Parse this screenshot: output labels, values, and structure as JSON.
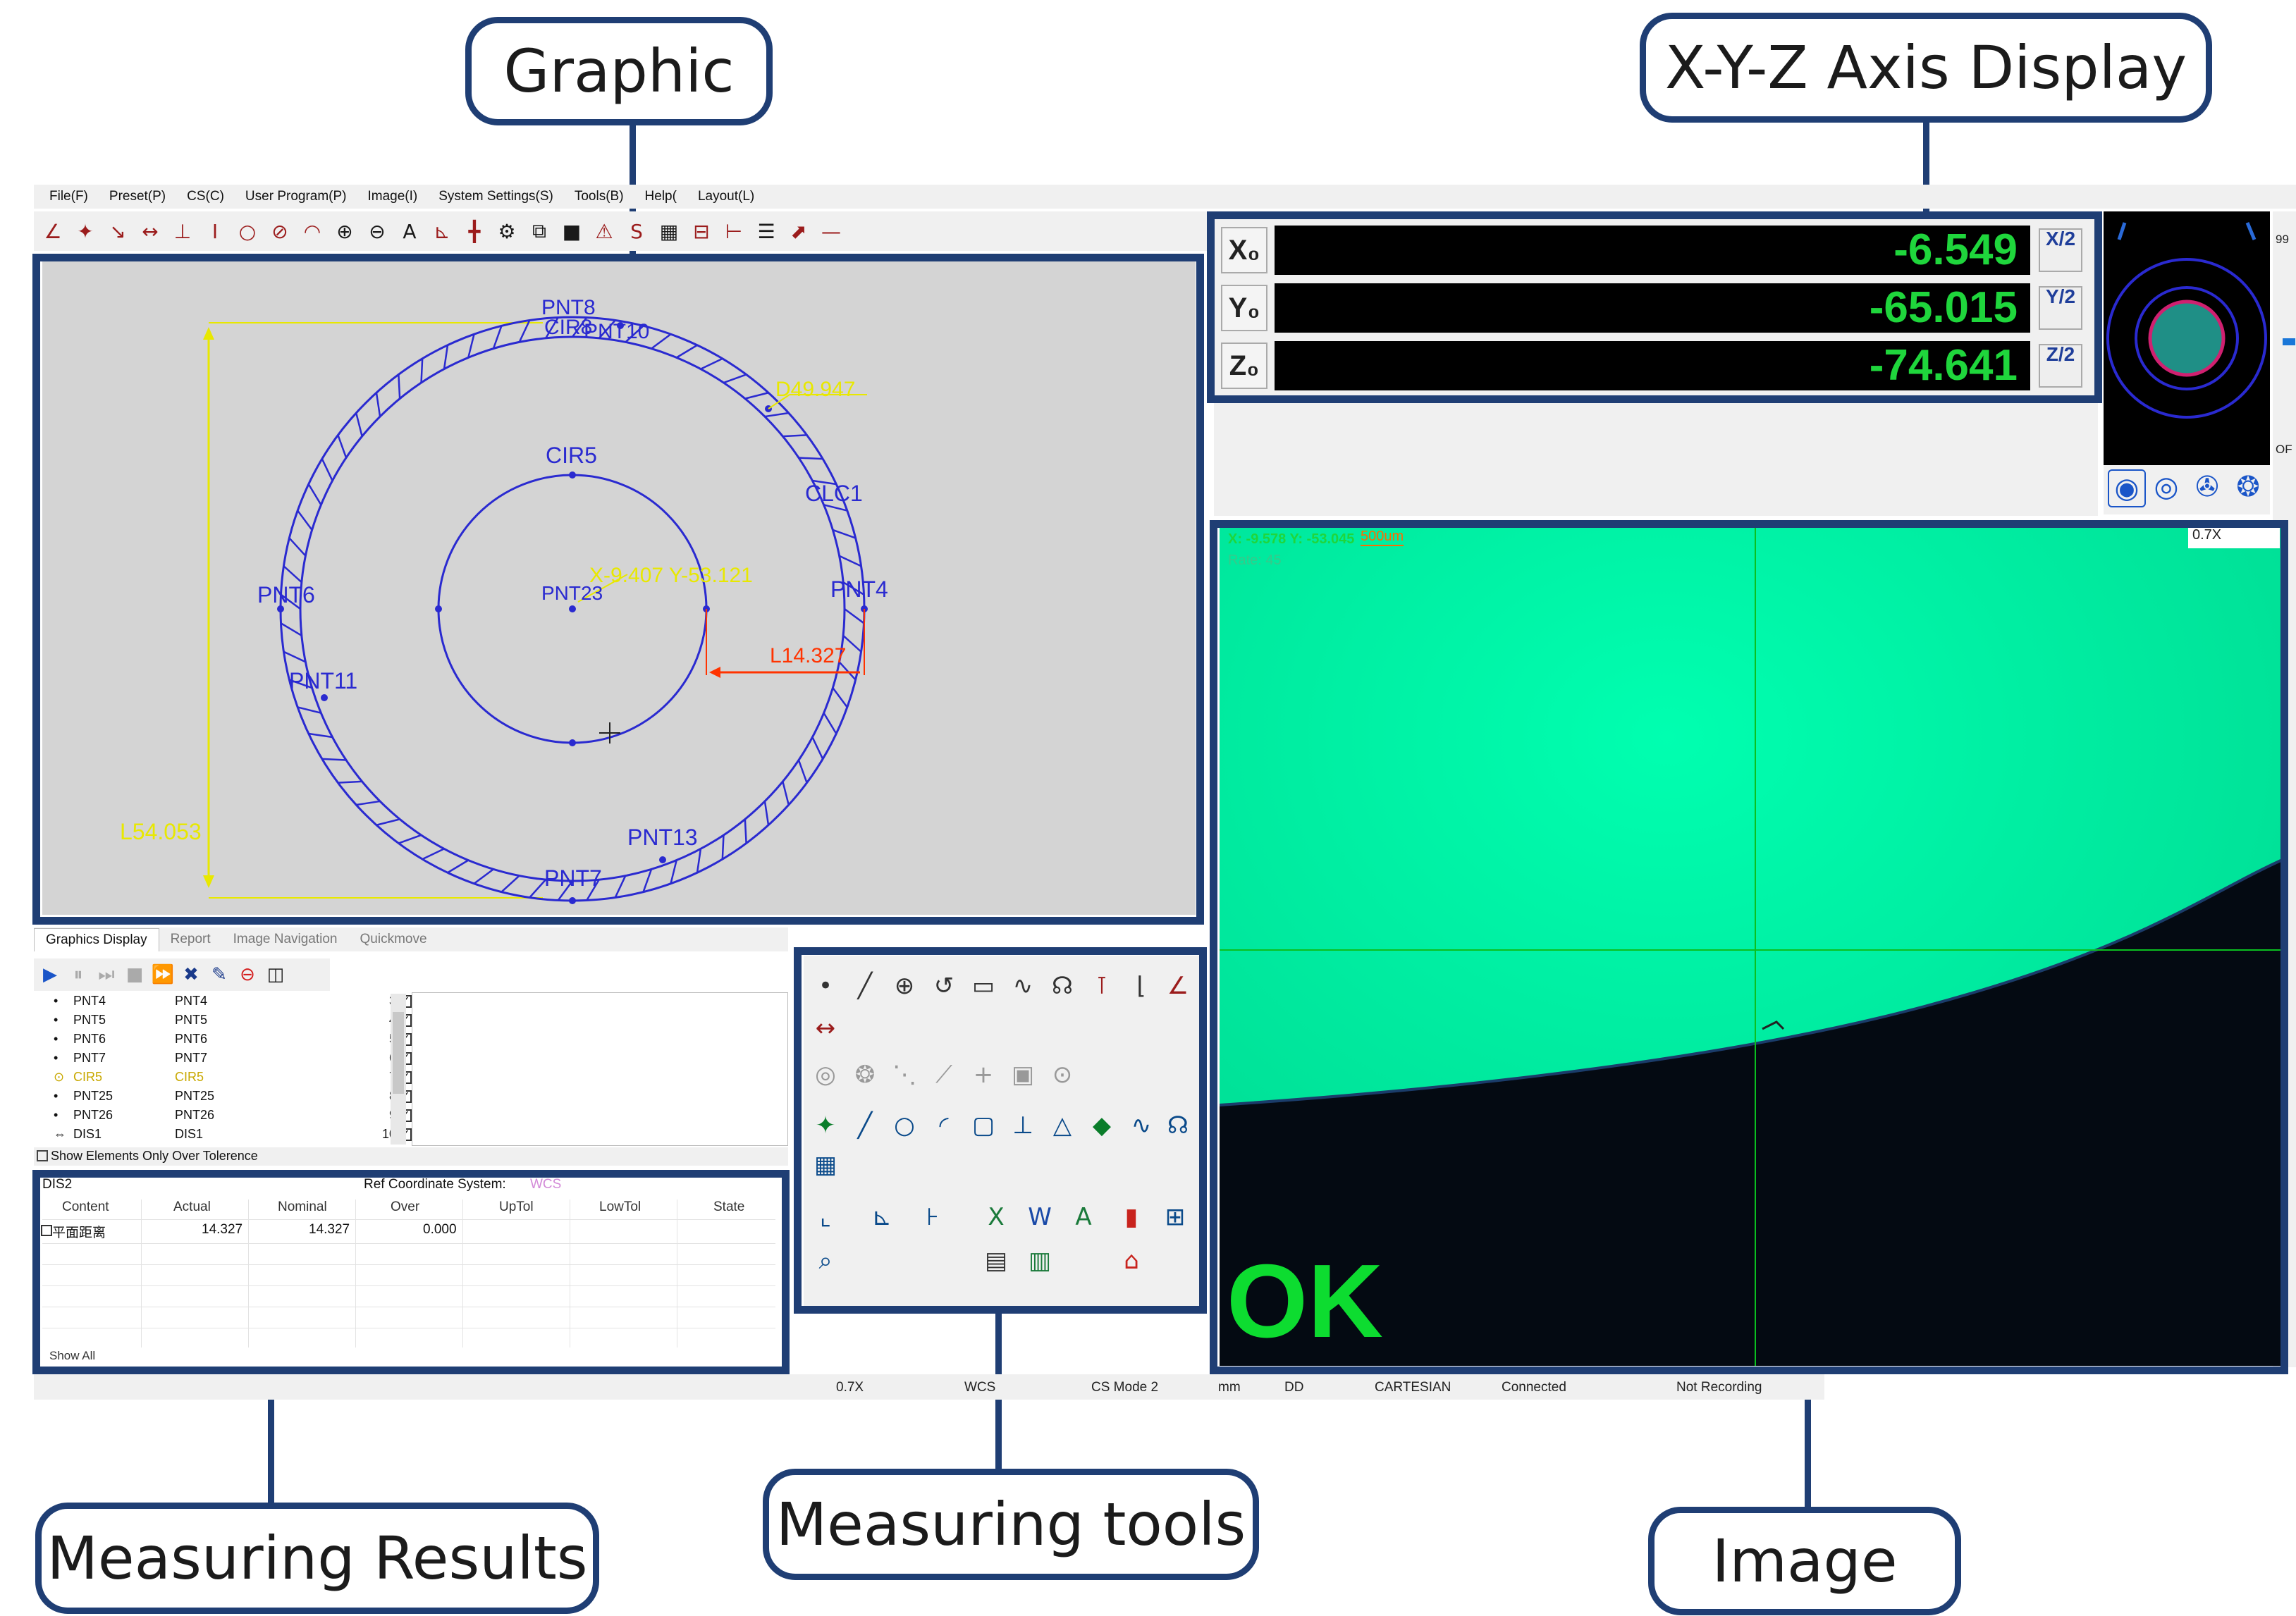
{
  "callouts": {
    "graphic": "Graphic",
    "axis_display": "X-Y-Z Axis Display",
    "measuring_results": "Measuring Results",
    "measuring_tools": "Measuring tools",
    "image": "Image"
  },
  "menu": [
    "File(F)",
    "Preset(P)",
    "CS(C)",
    "User Program(P)",
    "Image(I)",
    "System Settings(S)",
    "Tools(B)",
    "Help(",
    "Layout(L)"
  ],
  "graphic": {
    "labels": {
      "top_overlap": "PNT8",
      "top_cir": "CIR8",
      "pnt10": "PNT10",
      "d_dim": "D49.947",
      "cir5": "CIR5",
      "clc1": "CLC1",
      "pnt6": "PNT6",
      "center_stack": "PNT23",
      "xy_readout": "X-9.407 Y-53.121",
      "pnt4": "PNT4",
      "pnt11": "PNT11",
      "l_small": "L14.327",
      "l_large": "L54.053",
      "pnt13": "PNT13",
      "pnt7": "PNT7"
    }
  },
  "tabs": [
    "Graphics Display",
    "Report",
    "Image Navigation",
    "Quickmove"
  ],
  "elements": [
    {
      "name": "PNT4",
      "ref": "PNT4",
      "idx": "3",
      "icon": "•",
      "highlight": false
    },
    {
      "name": "PNT5",
      "ref": "PNT5",
      "idx": "4",
      "icon": "•",
      "highlight": false
    },
    {
      "name": "PNT6",
      "ref": "PNT6",
      "idx": "5",
      "icon": "•",
      "highlight": false
    },
    {
      "name": "PNT7",
      "ref": "PNT7",
      "idx": "6",
      "icon": "•",
      "highlight": false
    },
    {
      "name": "CIR5",
      "ref": "CIR5",
      "idx": "7",
      "icon": "⊙",
      "highlight": true
    },
    {
      "name": "PNT25",
      "ref": "PNT25",
      "idx": "8",
      "icon": "•",
      "highlight": false
    },
    {
      "name": "PNT26",
      "ref": "PNT26",
      "idx": "9",
      "icon": "•",
      "highlight": false
    },
    {
      "name": "DIS1",
      "ref": "DIS1",
      "idx": "10",
      "icon": "⇔",
      "highlight": false
    }
  ],
  "show_elements_label": "Show Elements Only Over Tolerence",
  "results": {
    "element": "DIS2",
    "ref_label": "Ref Coordinate System:",
    "ref_value": "WCS",
    "headers": [
      "Content",
      "Actual",
      "Nominal",
      "Over",
      "UpTol",
      "LowTol",
      "State"
    ],
    "row": {
      "content": "平面距离",
      "actual": "14.327",
      "nominal": "14.327",
      "over": "0.000"
    },
    "show_all": "Show All"
  },
  "axis": {
    "x": {
      "label": "X₀",
      "value": "-6.549",
      "half": "X/2"
    },
    "y": {
      "label": "Y₀",
      "value": "-65.015",
      "half": "Y/2"
    },
    "z": {
      "label": "Z₀",
      "value": "-74.641",
      "half": "Z/2"
    }
  },
  "camera": {
    "zoom": "0.7X",
    "scale": "500um",
    "result": "OK",
    "coords": "X: -9.578 Y: -53.045",
    "rate": "Rate: 45"
  },
  "minimap_side": {
    "top": "99",
    "bottom": "OF"
  },
  "status": [
    "0.7X",
    "WCS",
    "CS Mode 2",
    "mm",
    "DD",
    "CARTESIAN",
    "Connected",
    "Not Recording"
  ],
  "colors": {
    "frame": "#1f3e74",
    "vector_blue": "#2a2ad0",
    "dim_yellow": "#f2f200",
    "dim_red": "#ff3300",
    "readout_green": "#1fd63c",
    "camera_green": "#00f0a0"
  }
}
